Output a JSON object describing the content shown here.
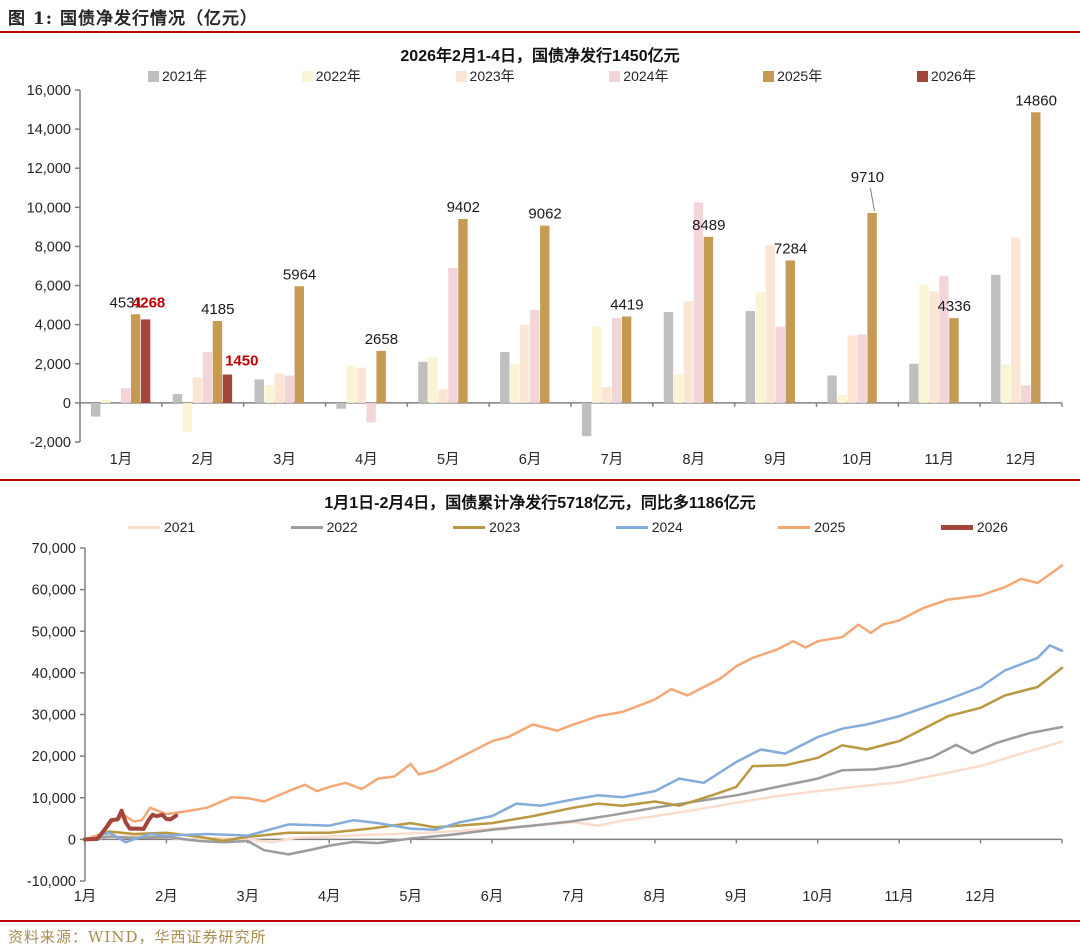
{
  "figure": {
    "title": "图 1: 国债净发行情况（亿元）",
    "source": "资料来源：WIND，华西证券研究所"
  },
  "colors": {
    "accent_red": "#C00000",
    "source_gold": "#A98B4F",
    "axis_line": "#808080",
    "label_black": "#1a1a1a",
    "label_red": "#C00000"
  },
  "chart_data": [
    {
      "type": "bar",
      "title": "2026年2月1-4日，国债净发行1450亿元",
      "categories": [
        "1月",
        "2月",
        "3月",
        "4月",
        "5月",
        "6月",
        "7月",
        "8月",
        "9月",
        "10月",
        "11月",
        "12月"
      ],
      "ylim": [
        -2000,
        16000
      ],
      "ytick_step": 2000,
      "grid": false,
      "legend_position": "top",
      "series": [
        {
          "name": "2021年",
          "color": "#BFBFBF",
          "values": [
            -700,
            450,
            1200,
            -300,
            2100,
            2600,
            -1700,
            4650,
            4700,
            1400,
            2000,
            6550
          ]
        },
        {
          "name": "2022年",
          "color": "#FAF3D4",
          "values": [
            150,
            -1500,
            900,
            1900,
            2350,
            2000,
            3900,
            1450,
            5650,
            400,
            6050,
            1950
          ]
        },
        {
          "name": "2023年",
          "color": "#FBE5D4",
          "values": [
            0,
            1300,
            1500,
            1800,
            700,
            4000,
            800,
            5200,
            8050,
            3450,
            5700,
            8450
          ]
        },
        {
          "name": "2024年",
          "color": "#F3D4D9",
          "values": [
            750,
            2600,
            1400,
            -1000,
            6900,
            4750,
            4350,
            10250,
            3900,
            3500,
            6500,
            900
          ]
        },
        {
          "name": "2025年",
          "color": "#C59B54",
          "show_labels": true,
          "label_color": "#1a1a1a",
          "values": [
            4531,
            4185,
            5964,
            2658,
            9402,
            9062,
            4419,
            8489,
            7284,
            9710,
            4336,
            14860
          ]
        },
        {
          "name": "2026年",
          "color": "#A2453B",
          "show_labels": true,
          "label_color": "#C00000",
          "values": [
            4268,
            1450,
            null,
            null,
            null,
            null,
            null,
            null,
            null,
            null,
            null,
            null
          ]
        }
      ]
    },
    {
      "type": "line",
      "title": "1月1日-2月4日，国债累计净发行5718亿元，同比多1186亿元",
      "x_labels": [
        "1月",
        "2月",
        "3月",
        "4月",
        "5月",
        "6月",
        "7月",
        "8月",
        "9月",
        "10月",
        "11月",
        "12月"
      ],
      "x_range": [
        1,
        13
      ],
      "ylim": [
        -10000,
        70000
      ],
      "ytick_step": 10000,
      "grid": false,
      "legend_position": "top",
      "series": [
        {
          "name": "2021",
          "color": "#FBDDCD",
          "width": 2.5,
          "points": [
            [
              1,
              0
            ],
            [
              1.2,
              300
            ],
            [
              1.4,
              1600
            ],
            [
              1.6,
              900
            ],
            [
              1.8,
              700
            ],
            [
              2,
              500
            ],
            [
              2.3,
              -300
            ],
            [
              2.6,
              300
            ],
            [
              3,
              0
            ],
            [
              3.3,
              -700
            ],
            [
              3.6,
              400
            ],
            [
              4,
              700
            ],
            [
              4.5,
              1100
            ],
            [
              5,
              1400
            ],
            [
              5.5,
              1900
            ],
            [
              6,
              2600
            ],
            [
              6.5,
              3300
            ],
            [
              7,
              4100
            ],
            [
              7.3,
              3300
            ],
            [
              7.6,
              4500
            ],
            [
              8,
              5600
            ],
            [
              8.5,
              7100
            ],
            [
              9,
              8800
            ],
            [
              9.5,
              10400
            ],
            [
              10,
              11600
            ],
            [
              10.5,
              12700
            ],
            [
              11,
              13700
            ],
            [
              11.5,
              15600
            ],
            [
              12,
              17600
            ],
            [
              12.5,
              20600
            ],
            [
              13,
              23500
            ]
          ]
        },
        {
          "name": "2022",
          "color": "#9C9C9C",
          "width": 2.5,
          "points": [
            [
              1,
              0
            ],
            [
              1.3,
              700
            ],
            [
              1.6,
              400
            ],
            [
              2,
              600
            ],
            [
              2.4,
              -400
            ],
            [
              2.7,
              -700
            ],
            [
              3,
              -400
            ],
            [
              3.2,
              -2600
            ],
            [
              3.5,
              -3600
            ],
            [
              3.8,
              -2400
            ],
            [
              4,
              -1500
            ],
            [
              4.3,
              -600
            ],
            [
              4.6,
              -900
            ],
            [
              5,
              200
            ],
            [
              5.5,
              1100
            ],
            [
              6,
              2300
            ],
            [
              6.5,
              3300
            ],
            [
              7,
              4400
            ],
            [
              7.5,
              5900
            ],
            [
              8,
              7600
            ],
            [
              8.5,
              9100
            ],
            [
              9,
              10600
            ],
            [
              9.5,
              12600
            ],
            [
              10,
              14600
            ],
            [
              10.3,
              16600
            ],
            [
              10.7,
              16800
            ],
            [
              11,
              17700
            ],
            [
              11.4,
              19700
            ],
            [
              11.7,
              22700
            ],
            [
              11.9,
              20700
            ],
            [
              12.2,
              23200
            ],
            [
              12.6,
              25500
            ],
            [
              13,
              27000
            ]
          ]
        },
        {
          "name": "2023",
          "color": "#BA9841",
          "width": 2.5,
          "points": [
            [
              1,
              0
            ],
            [
              1.3,
              1900
            ],
            [
              1.6,
              1300
            ],
            [
              2,
              1600
            ],
            [
              2.4,
              600
            ],
            [
              2.7,
              -300
            ],
            [
              3,
              600
            ],
            [
              3.5,
              1600
            ],
            [
              4,
              1600
            ],
            [
              4.5,
              2600
            ],
            [
              5,
              3900
            ],
            [
              5.3,
              2900
            ],
            [
              5.6,
              3300
            ],
            [
              6,
              3900
            ],
            [
              6.5,
              5600
            ],
            [
              7,
              7600
            ],
            [
              7.3,
              8600
            ],
            [
              7.6,
              8100
            ],
            [
              8,
              9100
            ],
            [
              8.3,
              8100
            ],
            [
              8.7,
              10600
            ],
            [
              9,
              12600
            ],
            [
              9.2,
              17600
            ],
            [
              9.6,
              17800
            ],
            [
              10,
              19600
            ],
            [
              10.3,
              22600
            ],
            [
              10.6,
              21600
            ],
            [
              11,
              23600
            ],
            [
              11.3,
              26600
            ],
            [
              11.6,
              29600
            ],
            [
              12,
              31600
            ],
            [
              12.3,
              34600
            ],
            [
              12.7,
              36600
            ],
            [
              13,
              41200
            ]
          ]
        },
        {
          "name": "2024",
          "color": "#84ACDB",
          "width": 2.5,
          "points": [
            [
              1,
              0
            ],
            [
              1.3,
              1600
            ],
            [
              1.5,
              -700
            ],
            [
              1.8,
              1300
            ],
            [
              2,
              900
            ],
            [
              2.5,
              1300
            ],
            [
              3,
              900
            ],
            [
              3.5,
              3600
            ],
            [
              4,
              3300
            ],
            [
              4.3,
              4600
            ],
            [
              4.6,
              3900
            ],
            [
              5,
              2600
            ],
            [
              5.3,
              2300
            ],
            [
              5.6,
              4100
            ],
            [
              6,
              5600
            ],
            [
              6.3,
              8600
            ],
            [
              6.6,
              8100
            ],
            [
              7,
              9600
            ],
            [
              7.3,
              10600
            ],
            [
              7.6,
              10100
            ],
            [
              8,
              11600
            ],
            [
              8.3,
              14600
            ],
            [
              8.6,
              13600
            ],
            [
              9,
              18600
            ],
            [
              9.3,
              21600
            ],
            [
              9.6,
              20600
            ],
            [
              10,
              24600
            ],
            [
              10.3,
              26600
            ],
            [
              10.6,
              27600
            ],
            [
              11,
              29600
            ],
            [
              11.3,
              31600
            ],
            [
              11.6,
              33600
            ],
            [
              12,
              36600
            ],
            [
              12.3,
              40600
            ],
            [
              12.7,
              43600
            ],
            [
              12.85,
              46600
            ],
            [
              13,
              45300
            ]
          ]
        },
        {
          "name": "2025",
          "color": "#F3A876",
          "width": 2.5,
          "points": [
            [
              1,
              0
            ],
            [
              1.2,
              1100
            ],
            [
              1.35,
              4600
            ],
            [
              1.5,
              5600
            ],
            [
              1.6,
              4300
            ],
            [
              1.7,
              4600
            ],
            [
              1.8,
              7600
            ],
            [
              2,
              6100
            ],
            [
              2.2,
              6600
            ],
            [
              2.5,
              7600
            ],
            [
              2.8,
              10100
            ],
            [
              3,
              9900
            ],
            [
              3.2,
              9100
            ],
            [
              3.5,
              11600
            ],
            [
              3.7,
              13100
            ],
            [
              3.85,
              11600
            ],
            [
              4,
              12600
            ],
            [
              4.2,
              13600
            ],
            [
              4.4,
              12100
            ],
            [
              4.6,
              14600
            ],
            [
              4.8,
              15100
            ],
            [
              5,
              18100
            ],
            [
              5.1,
              15600
            ],
            [
              5.3,
              16600
            ],
            [
              5.6,
              19600
            ],
            [
              6,
              23600
            ],
            [
              6.2,
              24600
            ],
            [
              6.5,
              27600
            ],
            [
              6.8,
              26100
            ],
            [
              7,
              27600
            ],
            [
              7.3,
              29600
            ],
            [
              7.6,
              30600
            ],
            [
              8,
              33600
            ],
            [
              8.2,
              36100
            ],
            [
              8.4,
              34600
            ],
            [
              8.6,
              36600
            ],
            [
              8.8,
              38600
            ],
            [
              9,
              41600
            ],
            [
              9.2,
              43600
            ],
            [
              9.5,
              45600
            ],
            [
              9.7,
              47600
            ],
            [
              9.85,
              46100
            ],
            [
              10,
              47600
            ],
            [
              10.3,
              48600
            ],
            [
              10.5,
              51600
            ],
            [
              10.65,
              49600
            ],
            [
              10.8,
              51600
            ],
            [
              11,
              52600
            ],
            [
              11.3,
              55600
            ],
            [
              11.6,
              57600
            ],
            [
              12,
              58600
            ],
            [
              12.3,
              60600
            ],
            [
              12.5,
              62600
            ],
            [
              12.7,
              61600
            ],
            [
              13,
              65800
            ]
          ]
        },
        {
          "name": "2026",
          "color": "#A2453B",
          "width": 4,
          "points": [
            [
              1,
              0
            ],
            [
              1.15,
              100
            ],
            [
              1.25,
              2600
            ],
            [
              1.32,
              4600
            ],
            [
              1.4,
              4800
            ],
            [
              1.45,
              6900
            ],
            [
              1.5,
              4100
            ],
            [
              1.55,
              2600
            ],
            [
              1.65,
              2600
            ],
            [
              1.72,
              2500
            ],
            [
              1.78,
              4600
            ],
            [
              1.83,
              5900
            ],
            [
              1.88,
              5600
            ],
            [
              1.95,
              5900
            ],
            [
              2,
              4900
            ],
            [
              2.05,
              4800
            ],
            [
              2.12,
              5718
            ]
          ]
        }
      ]
    }
  ]
}
